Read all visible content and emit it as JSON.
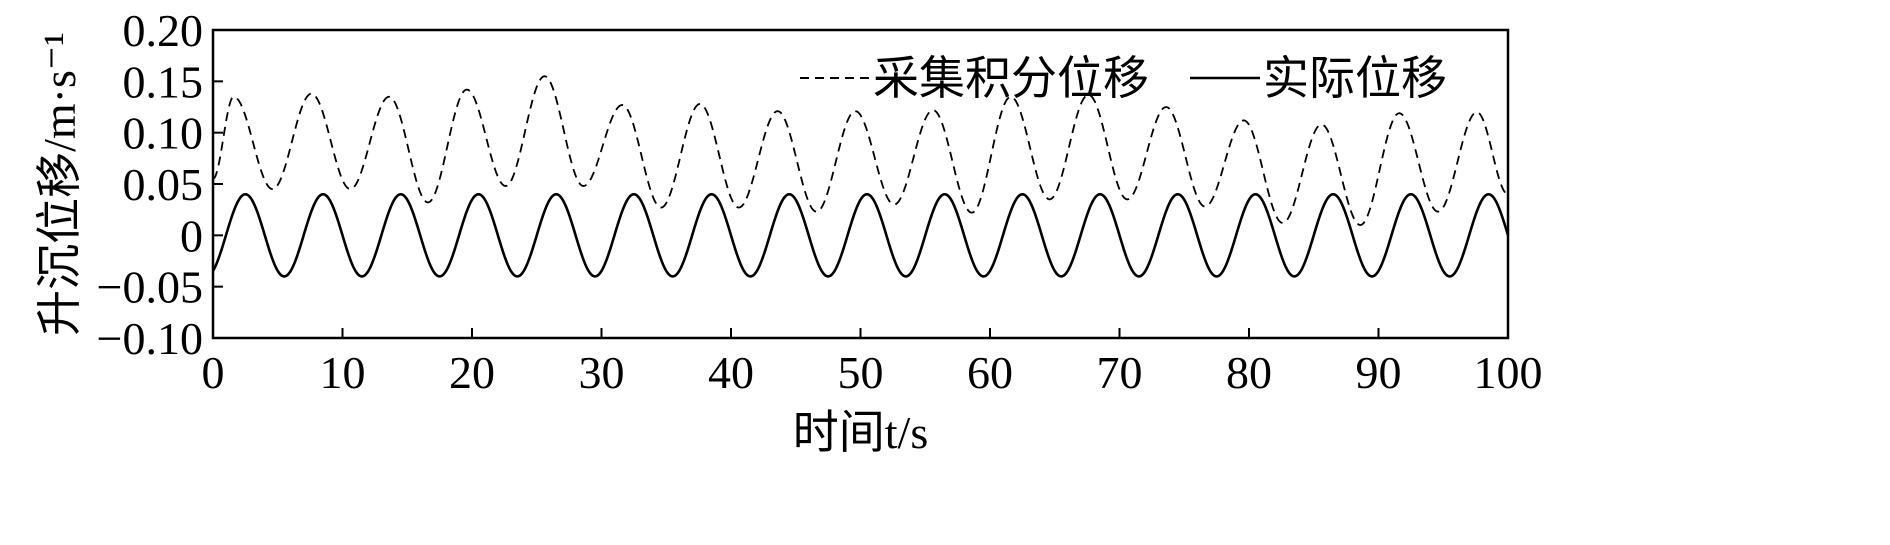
{
  "chart_data": {
    "type": "line",
    "xlabel": "时间t/s",
    "ylabel": "升沉位移/m·s⁻¹",
    "xlim": [
      0,
      100
    ],
    "ylim": [
      -0.1,
      0.2
    ],
    "x_ticks": [
      "0",
      "10",
      "20",
      "30",
      "40",
      "50",
      "60",
      "70",
      "80",
      "90",
      "100"
    ],
    "y_ticks": [
      "0.20",
      "0.15",
      "0.10",
      "0.05",
      "0",
      "−0.05",
      "−0.10"
    ],
    "legend_position": "top-right",
    "series": [
      {
        "name": "采集积分位移",
        "style": "dashed",
        "color": "#000000",
        "x": [
          0,
          1.6,
          4.6,
          7.6,
          10.6,
          13.6,
          16.6,
          19.6,
          22.6,
          25.6,
          28.6,
          31.6,
          34.6,
          37.6,
          40.6,
          43.6,
          46.6,
          49.6,
          52.6,
          55.6,
          58.6,
          61.6,
          64.6,
          67.6,
          70.6,
          73.6,
          76.6,
          79.6,
          82.6,
          85.6,
          88.6,
          91.6,
          94.6,
          97.6,
          100
        ],
        "y": [
          0.055,
          0.135,
          0.045,
          0.138,
          0.045,
          0.135,
          0.032,
          0.142,
          0.048,
          0.155,
          0.048,
          0.127,
          0.027,
          0.128,
          0.027,
          0.121,
          0.023,
          0.121,
          0.03,
          0.122,
          0.022,
          0.135,
          0.035,
          0.137,
          0.035,
          0.125,
          0.028,
          0.112,
          0.012,
          0.108,
          0.01,
          0.119,
          0.023,
          0.12,
          0.04
        ]
      },
      {
        "name": "实际位移",
        "style": "solid",
        "color": "#000000",
        "function": "0.04*sin(2*pi*(t-1)/6)",
        "amplitude": 0.04,
        "period": 6,
        "phase_shift": 1,
        "x_range": [
          0,
          100
        ]
      }
    ]
  }
}
